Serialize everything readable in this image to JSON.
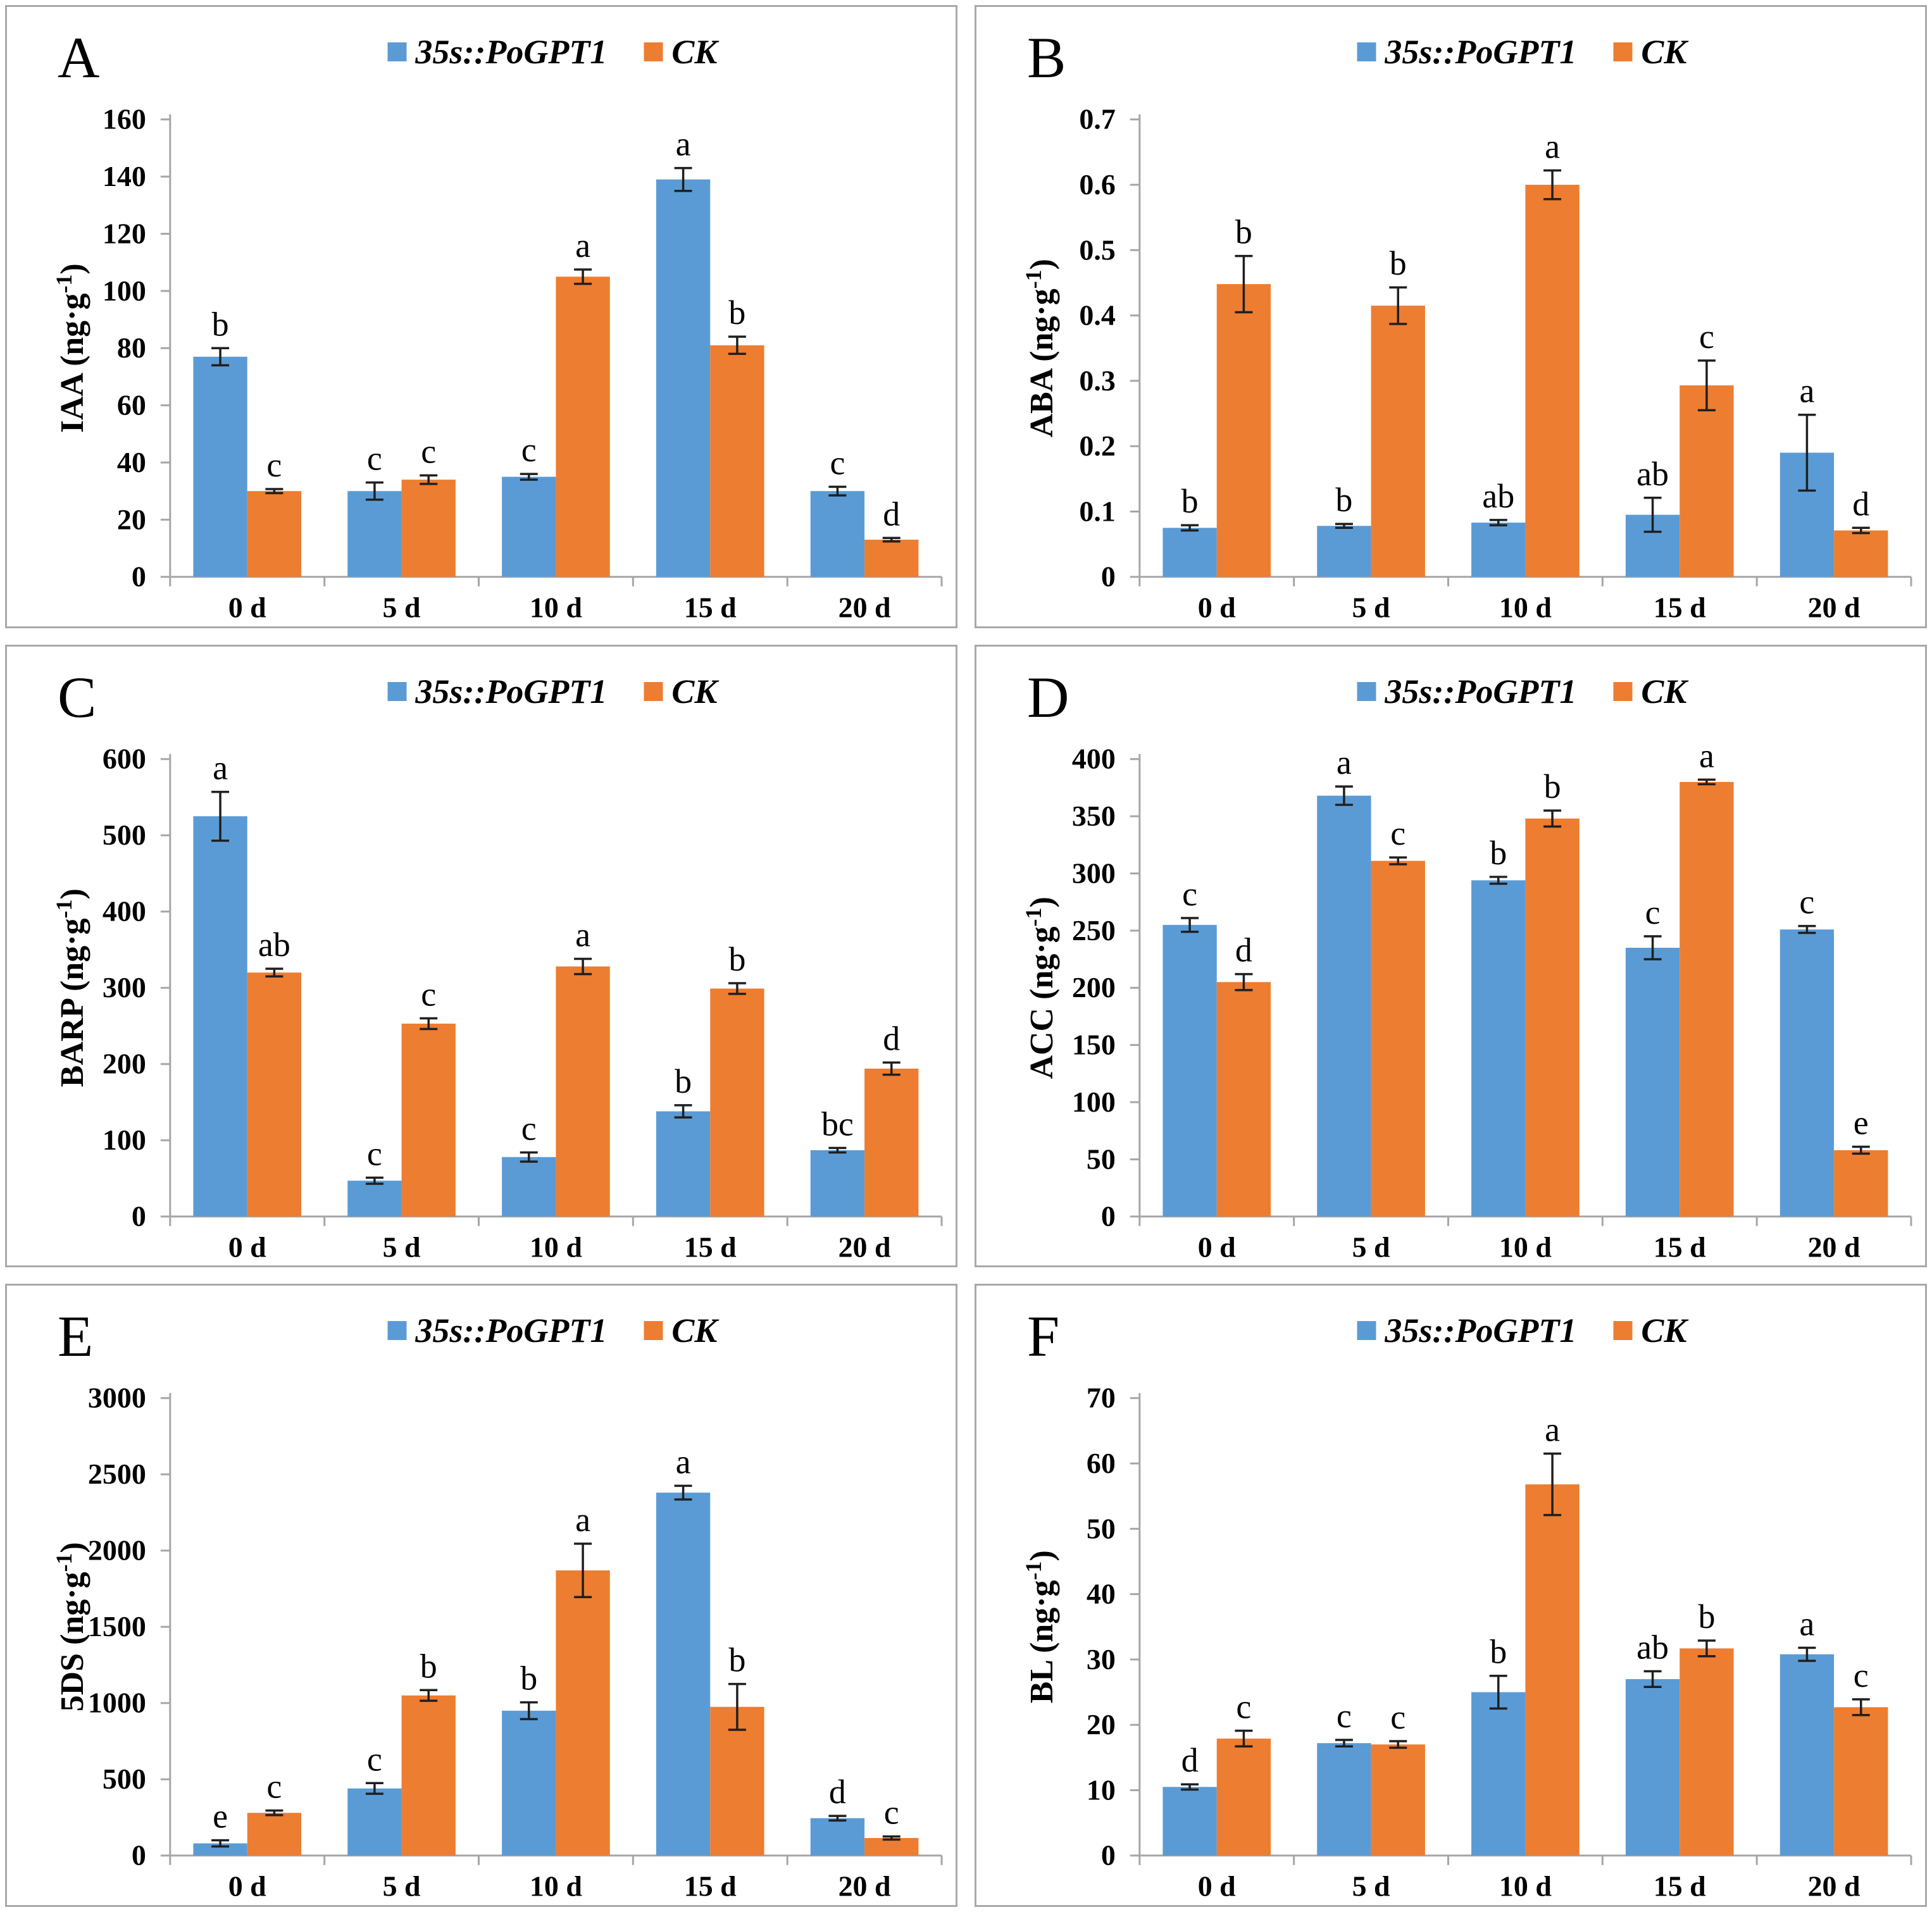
{
  "figure": {
    "x_categories": [
      "0 d",
      "5 d",
      "10 d",
      "15 d",
      "20 d"
    ],
    "error_bar_color": "#1f1f1f",
    "axis_color": "#a6a6a6"
  },
  "chart_data": [
    {
      "panel": "A",
      "type": "bar",
      "title": "",
      "xlabel": "",
      "ylabel": "IAA (ng·g⁻¹)",
      "ylim": [
        0,
        160
      ],
      "ystep": 20,
      "grid": false,
      "legend_position": "top-center",
      "categories": [
        "0 d",
        "5 d",
        "10 d",
        "15 d",
        "20 d"
      ],
      "series": [
        {
          "name": "35s::PoGPT1",
          "color": "#5B9BD5",
          "values": [
            77,
            30,
            35,
            139,
            30
          ],
          "errors": [
            3,
            3,
            1,
            4,
            1.5
          ],
          "letters": [
            "b",
            "c",
            "c",
            "a",
            "c"
          ]
        },
        {
          "name": "CK",
          "color": "#ED7D31",
          "values": [
            30,
            34,
            105,
            81,
            13
          ],
          "errors": [
            0.7,
            1.5,
            2.5,
            3,
            0.6
          ],
          "letters": [
            "c",
            "c",
            "a",
            "b",
            "d"
          ]
        }
      ]
    },
    {
      "panel": "B",
      "type": "bar",
      "title": "",
      "xlabel": "",
      "ylabel": "ABA (ng·g⁻¹)",
      "ylim": [
        0,
        0.7
      ],
      "ystep": 0.1,
      "grid": false,
      "legend_position": "top-center",
      "categories": [
        "0 d",
        "5 d",
        "10 d",
        "15 d",
        "20 d"
      ],
      "series": [
        {
          "name": "35s::PoGPT1",
          "color": "#5B9BD5",
          "values": [
            0.075,
            0.078,
            0.083,
            0.095,
            0.19
          ],
          "errors": [
            0.004,
            0.003,
            0.004,
            0.026,
            0.058
          ],
          "letters": [
            "b",
            "b",
            "ab",
            "ab",
            "a"
          ]
        },
        {
          "name": "CK",
          "color": "#ED7D31",
          "values": [
            0.448,
            0.415,
            0.6,
            0.293,
            0.071
          ],
          "errors": [
            0.043,
            0.028,
            0.022,
            0.038,
            0.004
          ],
          "letters": [
            "b",
            "b",
            "a",
            "c",
            "d"
          ]
        }
      ]
    },
    {
      "panel": "C",
      "type": "bar",
      "title": "",
      "xlabel": "",
      "ylabel": "BARP (ng·g⁻¹)",
      "ylim": [
        0,
        600
      ],
      "ystep": 100,
      "grid": false,
      "legend_position": "top-center",
      "categories": [
        "0 d",
        "5 d",
        "10 d",
        "15 d",
        "20 d"
      ],
      "series": [
        {
          "name": "35s::PoGPT1",
          "color": "#5B9BD5",
          "values": [
            525,
            47,
            78,
            138,
            87
          ],
          "errors": [
            32,
            4,
            6,
            8,
            3
          ],
          "letters": [
            "a",
            "c",
            "c",
            "b",
            "bc"
          ]
        },
        {
          "name": "CK",
          "color": "#ED7D31",
          "values": [
            320,
            253,
            328,
            299,
            194
          ],
          "errors": [
            5,
            7,
            10,
            7,
            8
          ],
          "letters": [
            "ab",
            "c",
            "a",
            "b",
            "d"
          ]
        }
      ]
    },
    {
      "panel": "D",
      "type": "bar",
      "title": "",
      "xlabel": "",
      "ylabel": "ACC (ng·g⁻¹)",
      "ylim": [
        0,
        400
      ],
      "ystep": 50,
      "grid": false,
      "legend_position": "top-center",
      "categories": [
        "0 d",
        "5 d",
        "10 d",
        "15 d",
        "20 d"
      ],
      "series": [
        {
          "name": "35s::PoGPT1",
          "color": "#5B9BD5",
          "values": [
            255,
            368,
            294,
            235,
            251
          ],
          "errors": [
            6,
            8,
            3,
            10,
            3
          ],
          "letters": [
            "c",
            "a",
            "b",
            "c",
            "c"
          ]
        },
        {
          "name": "CK",
          "color": "#ED7D31",
          "values": [
            205,
            311,
            348,
            380,
            58
          ],
          "errors": [
            7,
            3,
            7,
            2,
            3
          ],
          "letters": [
            "d",
            "c",
            "b",
            "a",
            "e"
          ]
        }
      ]
    },
    {
      "panel": "E",
      "type": "bar",
      "title": "",
      "xlabel": "",
      "ylabel": "5DS (ng·g⁻¹)",
      "ylim": [
        0,
        3000
      ],
      "ystep": 500,
      "grid": false,
      "legend_position": "top-center",
      "categories": [
        "0 d",
        "5 d",
        "10 d",
        "15 d",
        "20 d"
      ],
      "series": [
        {
          "name": "35s::PoGPT1",
          "color": "#5B9BD5",
          "values": [
            80,
            440,
            950,
            2380,
            245
          ],
          "errors": [
            20,
            35,
            55,
            45,
            15
          ],
          "letters": [
            "e",
            "c",
            "b",
            "a",
            "d"
          ]
        },
        {
          "name": "CK",
          "color": "#ED7D31",
          "values": [
            280,
            1050,
            1870,
            975,
            115
          ],
          "errors": [
            15,
            35,
            175,
            150,
            10
          ],
          "letters": [
            "c",
            "b",
            "a",
            "b",
            "c"
          ]
        }
      ]
    },
    {
      "panel": "F",
      "type": "bar",
      "title": "",
      "xlabel": "",
      "ylabel": "BL (ng·g⁻¹)",
      "ylim": [
        0,
        70
      ],
      "ystep": 10,
      "grid": false,
      "legend_position": "top-center",
      "categories": [
        "0 d",
        "5 d",
        "10 d",
        "15 d",
        "20 d"
      ],
      "series": [
        {
          "name": "35s::PoGPT1",
          "color": "#5B9BD5",
          "values": [
            10.5,
            17.2,
            25,
            27,
            30.8
          ],
          "errors": [
            0.4,
            0.5,
            2.5,
            1.2,
            1
          ],
          "letters": [
            "d",
            "c",
            "b",
            "ab",
            "a"
          ]
        },
        {
          "name": "CK",
          "color": "#ED7D31",
          "values": [
            17.9,
            17,
            56.8,
            31.7,
            22.7
          ],
          "errors": [
            1.2,
            0.5,
            4.7,
            1.2,
            1.2
          ],
          "letters": [
            "c",
            "c",
            "a",
            "b",
            "c"
          ]
        }
      ]
    }
  ]
}
